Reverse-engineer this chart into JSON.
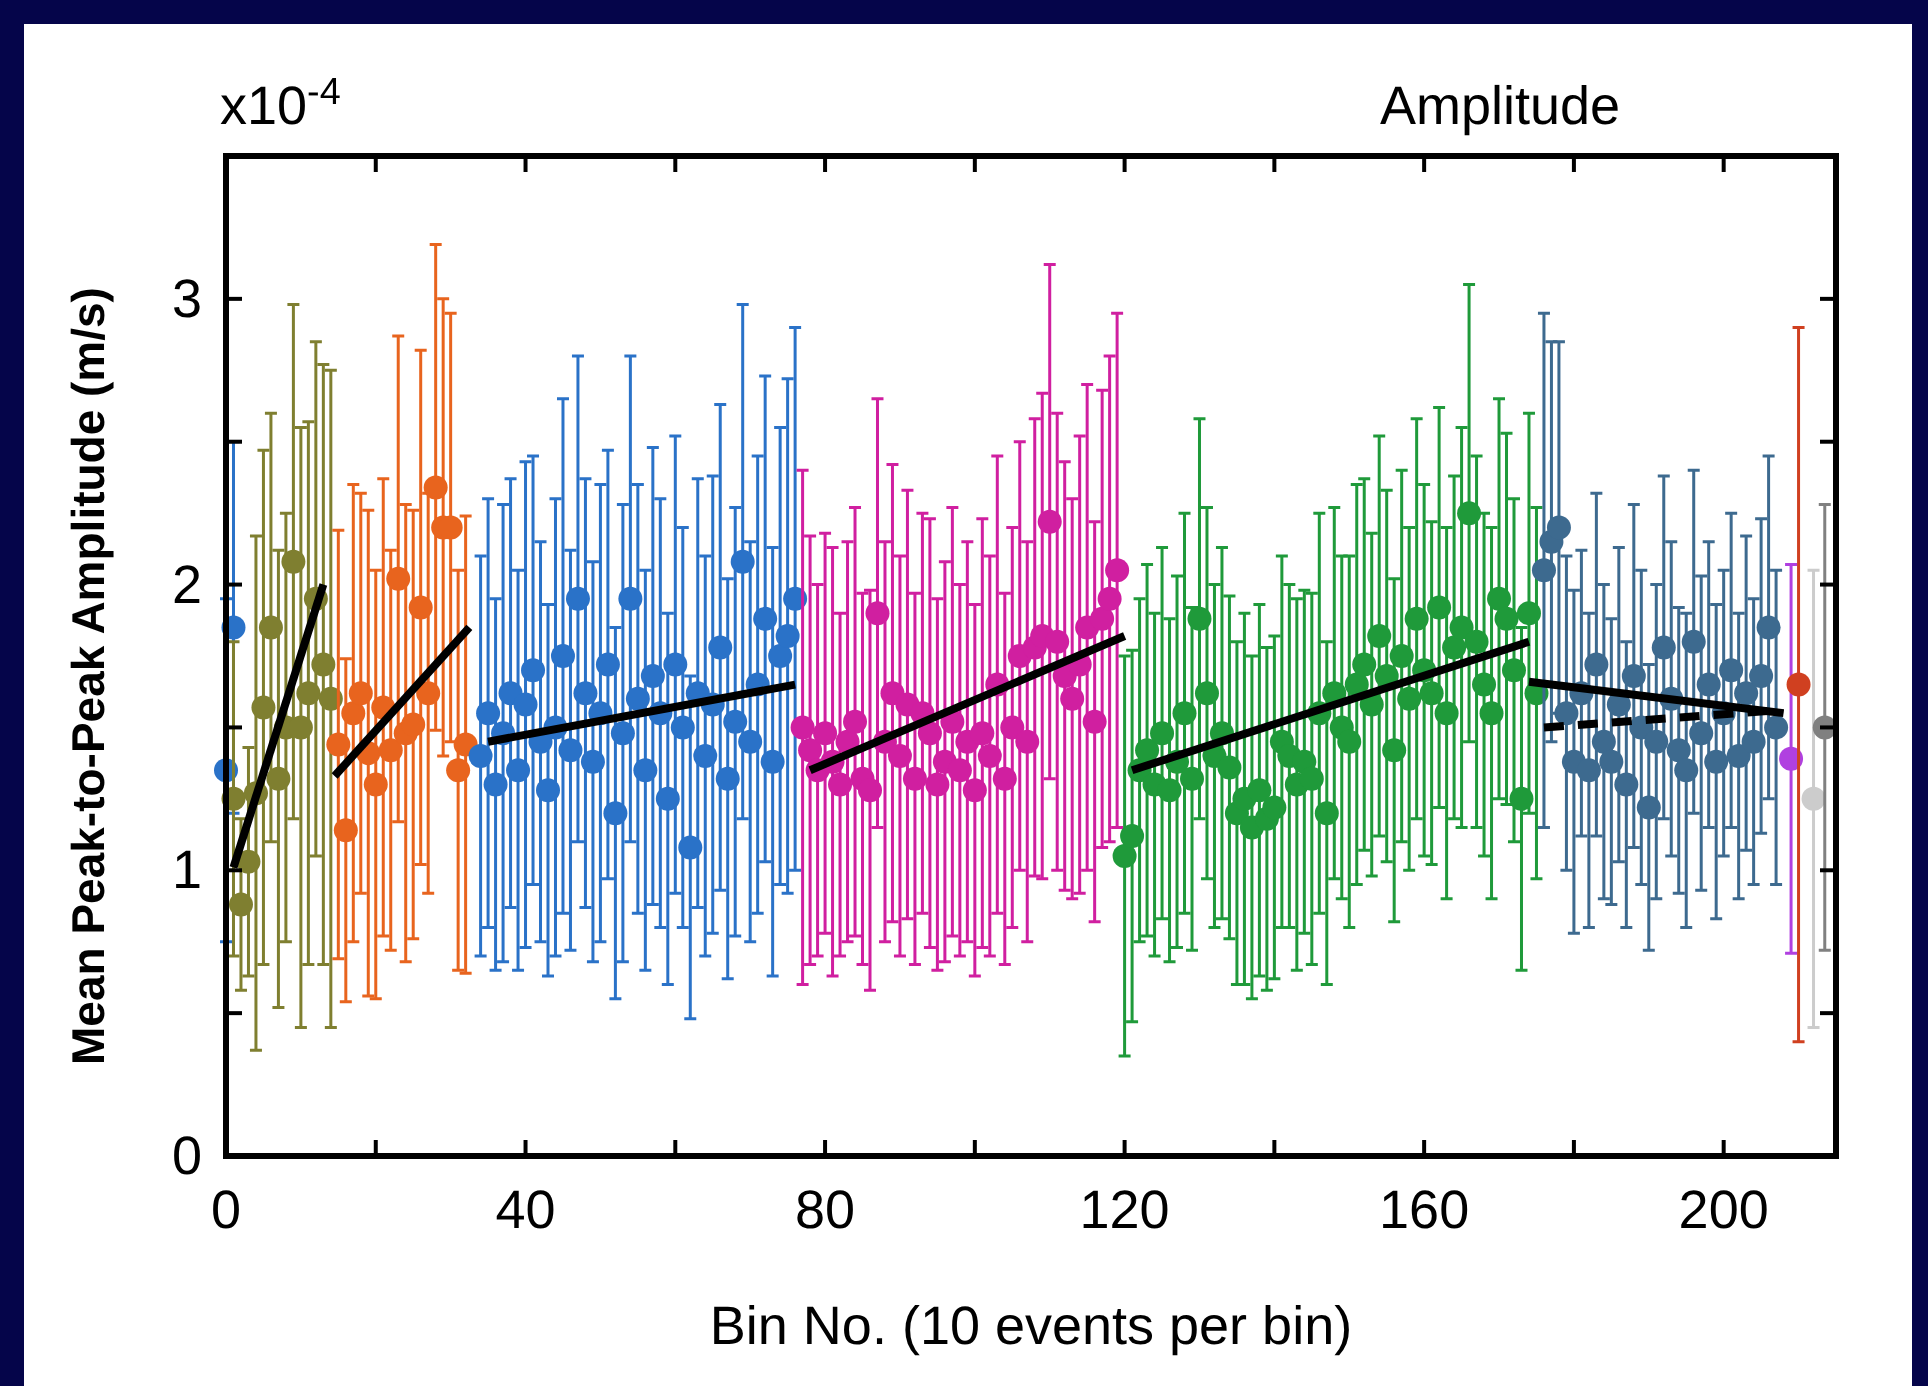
{
  "chart_data": {
    "type": "scatter",
    "title": "Amplitude",
    "xlabel": "Bin No. (10 events per bin)",
    "ylabel": "Mean Peak-to-Peak Amplitude (m/s)",
    "annotations": [
      "x10$^{-4}$"
    ],
    "xlim": [
      0,
      215
    ],
    "ylim": [
      0,
      3.5
    ],
    "xticks": [
      0,
      {
        "value": 20,
        "label": null
      },
      40,
      {
        "value": 60,
        "label": null
      },
      80,
      {
        "value": 100,
        "label": null
      },
      120,
      {
        "value": 140,
        "label": null
      },
      160,
      {
        "value": 180,
        "label": null
      },
      200
    ],
    "yticks": [
      0,
      {
        "value": 0.5,
        "label": null
      },
      1,
      {
        "value": 1.5,
        "label": null
      },
      2,
      {
        "value": 2.5,
        "label": null
      },
      3
    ],
    "grid": false,
    "marker": "circle",
    "series": [
      {
        "color": "#2a72c8",
        "x": [
          0,
          1
        ],
        "values": [
          1.35,
          1.85
        ],
        "errors": [
          0.6,
          0.65
        ]
      },
      {
        "color": "#7f7f30",
        "x": [
          1,
          2,
          3,
          4,
          5,
          6,
          7,
          8,
          9,
          10,
          11,
          12,
          13,
          14
        ],
        "values": [
          1.25,
          0.88,
          1.03,
          1.27,
          1.57,
          1.85,
          1.32,
          1.5,
          2.08,
          1.5,
          1.62,
          1.95,
          1.72,
          1.6
        ],
        "errors": [
          0.55,
          0.3,
          0.4,
          0.9,
          0.9,
          0.75,
          0.8,
          0.75,
          0.9,
          1.05,
          0.95,
          0.9,
          1.05,
          1.15
        ]
      },
      {
        "color": "#e8641e",
        "x": [
          15,
          16,
          17,
          18,
          19,
          20,
          21,
          22,
          23,
          24,
          25,
          26,
          27,
          28,
          29,
          30,
          31,
          32
        ],
        "values": [
          1.44,
          1.14,
          1.55,
          1.62,
          1.41,
          1.3,
          1.57,
          1.42,
          2.02,
          1.48,
          1.51,
          1.92,
          1.62,
          2.34,
          2.2,
          2.2,
          1.35,
          1.44
        ],
        "errors": [
          0.75,
          0.6,
          0.8,
          0.7,
          0.85,
          0.75,
          0.8,
          0.7,
          0.85,
          0.8,
          0.75,
          0.9,
          0.7,
          0.85,
          0.8,
          0.75,
          0.7,
          0.8
        ]
      },
      {
        "color": "#2a72c8",
        "x": [
          34,
          35,
          36,
          37,
          38,
          39,
          40,
          41,
          42,
          43,
          44,
          45,
          46,
          47,
          48,
          49,
          50,
          51,
          52,
          53,
          54,
          55,
          56,
          57,
          58,
          59,
          60,
          61,
          62,
          63,
          64,
          65,
          66,
          67,
          68,
          69,
          70,
          71,
          72,
          73,
          74,
          75,
          76
        ],
        "values": [
          1.4,
          1.55,
          1.3,
          1.48,
          1.62,
          1.35,
          1.58,
          1.7,
          1.45,
          1.28,
          1.5,
          1.75,
          1.42,
          1.95,
          1.62,
          1.38,
          1.55,
          1.72,
          1.2,
          1.48,
          1.95,
          1.6,
          1.35,
          1.68,
          1.55,
          1.25,
          1.72,
          1.5,
          1.08,
          1.62,
          1.4,
          1.58,
          1.78,
          1.32,
          1.52,
          2.08,
          1.45,
          1.65,
          1.88,
          1.38,
          1.75,
          1.82,
          1.95
        ],
        "errors": [
          0.7,
          0.75,
          0.65,
          0.8,
          0.75,
          0.7,
          0.85,
          0.75,
          0.7,
          0.65,
          0.8,
          0.9,
          0.7,
          0.85,
          0.75,
          0.7,
          0.8,
          0.75,
          0.65,
          0.8,
          0.85,
          0.75,
          0.7,
          0.8,
          0.75,
          0.65,
          0.8,
          0.7,
          0.6,
          0.75,
          0.7,
          0.8,
          0.85,
          0.7,
          0.75,
          0.9,
          0.7,
          0.8,
          0.85,
          0.75,
          0.8,
          0.9,
          0.95
        ]
      },
      {
        "color": "#d01fa0",
        "x": [
          77,
          78,
          79,
          80,
          81,
          82,
          83,
          84,
          85,
          86,
          87,
          88,
          89,
          90,
          91,
          92,
          93,
          94,
          95,
          96,
          97,
          98,
          99,
          100,
          101,
          102,
          103,
          104,
          105,
          106,
          107,
          108,
          109,
          110,
          111,
          112,
          113,
          114,
          115,
          116,
          117,
          118,
          119
        ],
        "values": [
          1.5,
          1.42,
          1.35,
          1.48,
          1.38,
          1.3,
          1.45,
          1.52,
          1.32,
          1.28,
          1.9,
          1.45,
          1.62,
          1.4,
          1.58,
          1.32,
          1.55,
          1.48,
          1.3,
          1.38,
          1.52,
          1.35,
          1.45,
          1.28,
          1.48,
          1.4,
          1.65,
          1.32,
          1.5,
          1.75,
          1.45,
          1.78,
          1.82,
          2.22,
          1.8,
          1.68,
          1.6,
          1.72,
          1.85,
          1.52,
          1.88,
          1.95,
          2.05
        ],
        "errors": [
          0.9,
          0.75,
          0.65,
          0.7,
          0.75,
          0.6,
          0.7,
          0.75,
          0.65,
          0.7,
          0.75,
          0.7,
          0.8,
          0.7,
          0.75,
          0.65,
          0.7,
          0.75,
          0.65,
          0.7,
          0.75,
          0.65,
          0.7,
          0.65,
          0.75,
          0.7,
          0.8,
          0.65,
          0.7,
          0.75,
          0.7,
          0.8,
          0.85,
          0.9,
          0.8,
          0.75,
          0.7,
          0.8,
          0.85,
          0.7,
          0.8,
          0.85,
          0.9
        ]
      },
      {
        "color": "#1f9a3a",
        "x": [
          120,
          121,
          122,
          123,
          124,
          125,
          126,
          127,
          128,
          129,
          130,
          131,
          132,
          133,
          134,
          135,
          136,
          137,
          138,
          139,
          140,
          141,
          142,
          143,
          144,
          145,
          146,
          147,
          148,
          149,
          150,
          151,
          152,
          153,
          154,
          155,
          156,
          157,
          158,
          159,
          160,
          161,
          162,
          163,
          164,
          165,
          166,
          167,
          168,
          169,
          170,
          171,
          172,
          173,
          174,
          175
        ],
        "values": [
          1.05,
          1.12,
          1.35,
          1.42,
          1.3,
          1.48,
          1.28,
          1.38,
          1.55,
          1.32,
          1.88,
          1.62,
          1.4,
          1.48,
          1.36,
          1.2,
          1.25,
          1.15,
          1.28,
          1.18,
          1.22,
          1.45,
          1.4,
          1.3,
          1.38,
          1.32,
          1.55,
          1.2,
          1.62,
          1.5,
          1.45,
          1.65,
          1.72,
          1.58,
          1.82,
          1.68,
          1.42,
          1.75,
          1.6,
          1.88,
          1.7,
          1.62,
          1.92,
          1.55,
          1.78,
          1.85,
          2.25,
          1.8,
          1.65,
          1.55,
          1.95,
          1.88,
          1.7,
          1.25,
          1.9,
          1.62
        ],
        "errors": [
          0.7,
          0.65,
          0.6,
          0.65,
          0.6,
          0.65,
          0.6,
          0.65,
          0.7,
          0.6,
          0.7,
          0.65,
          0.6,
          0.65,
          0.6,
          0.6,
          0.65,
          0.6,
          0.65,
          0.6,
          0.6,
          0.65,
          0.6,
          0.65,
          0.6,
          0.65,
          0.7,
          0.6,
          0.65,
          0.6,
          0.65,
          0.7,
          0.65,
          0.6,
          0.7,
          0.65,
          0.6,
          0.65,
          0.6,
          0.7,
          0.65,
          0.6,
          0.7,
          0.65,
          0.6,
          0.7,
          0.8,
          0.65,
          0.6,
          0.65,
          0.7,
          0.65,
          0.6,
          0.6,
          0.7,
          0.65
        ]
      },
      {
        "color": "#3d6a8f",
        "x": [
          176,
          177,
          178,
          179,
          180,
          181,
          182,
          183,
          184,
          185,
          186,
          187,
          188,
          189,
          190,
          191,
          192,
          193,
          194,
          195,
          196,
          197,
          198,
          199,
          200,
          201,
          202,
          203,
          204,
          205,
          206,
          207
        ],
        "values": [
          2.05,
          2.15,
          2.2,
          1.55,
          1.38,
          1.62,
          1.35,
          1.72,
          1.45,
          1.38,
          1.58,
          1.3,
          1.68,
          1.5,
          1.22,
          1.45,
          1.78,
          1.6,
          1.42,
          1.35,
          1.8,
          1.48,
          1.65,
          1.38,
          1.55,
          1.7,
          1.4,
          1.62,
          1.45,
          1.68,
          1.85,
          1.5
        ],
        "errors": [
          0.9,
          0.7,
          0.65,
          0.55,
          0.6,
          0.5,
          0.55,
          0.6,
          0.55,
          0.5,
          0.55,
          0.5,
          0.6,
          0.55,
          0.5,
          0.55,
          0.6,
          0.55,
          0.5,
          0.55,
          0.6,
          0.55,
          0.5,
          0.55,
          0.5,
          0.55,
          0.5,
          0.55,
          0.5,
          0.55,
          0.6,
          0.55
        ]
      },
      {
        "color": "#b040e0",
        "x": [
          209
        ],
        "values": [
          1.39
        ],
        "errors": [
          0.68
        ]
      },
      {
        "color": "#d04020",
        "x": [
          210
        ],
        "values": [
          1.65
        ],
        "errors": [
          1.25
        ]
      },
      {
        "color": "#cccccc",
        "x": [
          212
        ],
        "values": [
          1.25
        ],
        "errors": [
          0.8
        ]
      },
      {
        "color": "#808080",
        "x": [
          213.5
        ],
        "values": [
          1.5
        ],
        "errors": [
          0.78
        ]
      },
      {
        "type": "line",
        "marker": "none",
        "color": "#000000",
        "x": [
          1,
          13
        ],
        "values": [
          1.01,
          2.0
        ]
      },
      {
        "type": "line",
        "marker": "none",
        "color": "#000000",
        "x": [
          14.5,
          32.5
        ],
        "values": [
          1.33,
          1.85
        ]
      },
      {
        "type": "line",
        "marker": "none",
        "color": "#000000",
        "x": [
          35,
          76
        ],
        "values": [
          1.45,
          1.65
        ]
      },
      {
        "type": "line",
        "marker": "none",
        "color": "#000000",
        "x": [
          78,
          120
        ],
        "values": [
          1.35,
          1.82
        ]
      },
      {
        "type": "line",
        "marker": "none",
        "color": "#000000",
        "x": [
          121,
          174
        ],
        "values": [
          1.35,
          1.8
        ]
      },
      {
        "type": "line",
        "marker": "none",
        "color": "#000000",
        "x": [
          174,
          208
        ],
        "values": [
          1.66,
          1.55
        ]
      },
      {
        "type": "line",
        "marker": "none",
        "color": "#000000",
        "line_style": "dashed",
        "x": [
          176,
          207
        ],
        "values": [
          1.5,
          1.56
        ]
      }
    ]
  }
}
